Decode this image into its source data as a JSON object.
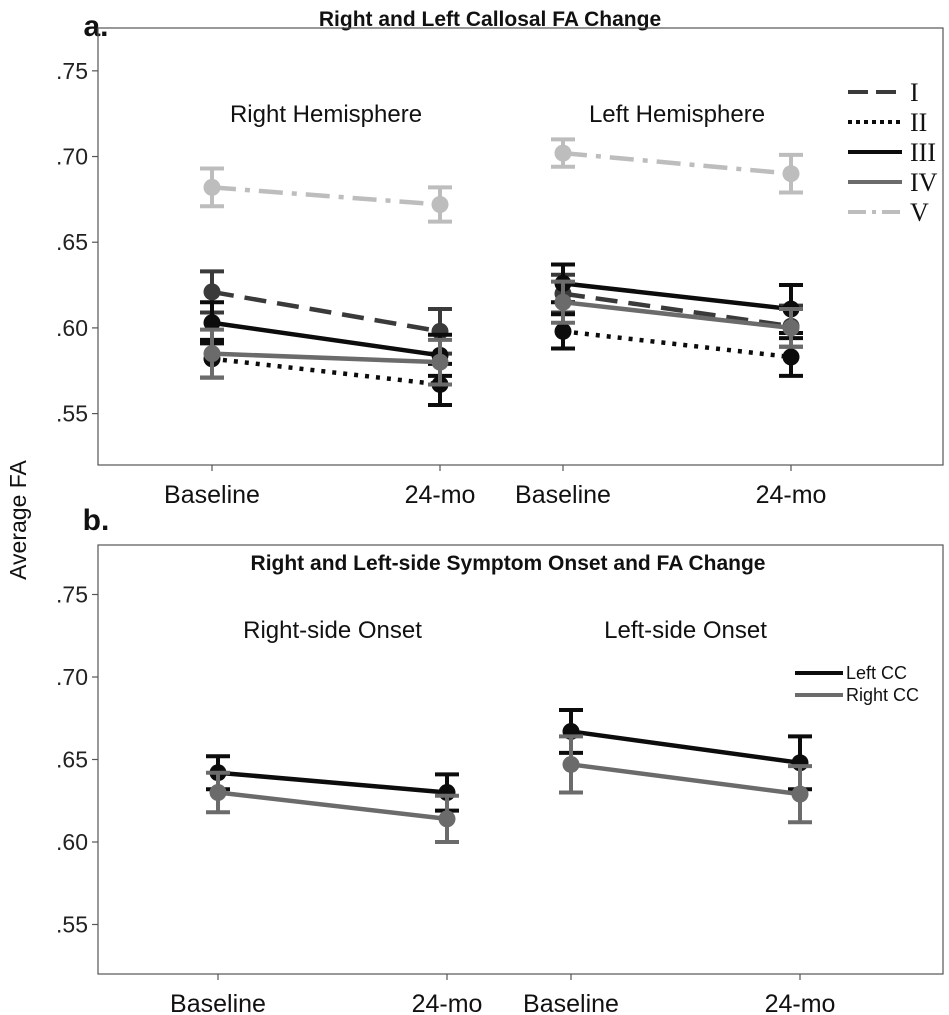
{
  "ylabel": "Average FA",
  "chart_data": [
    {
      "type": "line",
      "panel_label": "a.",
      "title": "Right and Left Callosal FA Change",
      "ylim": [
        0.52,
        0.775
      ],
      "yticks": [
        ".55",
        ".60",
        ".65",
        ".70",
        ".75"
      ],
      "ytick_values": [
        0.55,
        0.6,
        0.65,
        0.7,
        0.75
      ],
      "groups": [
        {
          "label": "Right Hemisphere",
          "categories": [
            "Baseline",
            "24-mo"
          ]
        },
        {
          "label": "Left Hemisphere",
          "categories": [
            "Baseline",
            "24-mo"
          ]
        }
      ],
      "legend": {
        "position": "top-right"
      },
      "series": [
        {
          "name": "I",
          "dash": "dashed",
          "color": "#3a3a3a",
          "values": [
            [
              0.621,
              0.598
            ],
            [
              0.62,
              0.601
            ]
          ],
          "err": [
            [
              0.012,
              0.013
            ],
            [
              0.011,
              0.012
            ]
          ]
        },
        {
          "name": "II",
          "dash": "dotted",
          "color": "#0c0c0c",
          "values": [
            [
              0.582,
              0.567
            ],
            [
              0.598,
              0.583
            ]
          ],
          "err": [
            [
              0.011,
              0.012
            ],
            [
              0.01,
              0.011
            ]
          ]
        },
        {
          "name": "III",
          "dash": "solid",
          "color": "#0c0c0c",
          "values": [
            [
              0.603,
              0.584
            ],
            [
              0.626,
              0.611
            ]
          ],
          "err": [
            [
              0.012,
              0.012
            ],
            [
              0.011,
              0.014
            ]
          ]
        },
        {
          "name": "IV",
          "dash": "solid",
          "color": "#6b6b6b",
          "values": [
            [
              0.585,
              0.58
            ],
            [
              0.615,
              0.6
            ]
          ],
          "err": [
            [
              0.014,
              0.013
            ],
            [
              0.012,
              0.011
            ]
          ]
        },
        {
          "name": "V",
          "dash": "dashdot",
          "color": "#bdbdbd",
          "values": [
            [
              0.682,
              0.672
            ],
            [
              0.702,
              0.69
            ]
          ],
          "err": [
            [
              0.011,
              0.01
            ],
            [
              0.008,
              0.011
            ]
          ]
        }
      ]
    },
    {
      "type": "line",
      "panel_label": "b.",
      "title": "Right and Left-side Symptom Onset and FA Change",
      "ylim": [
        0.52,
        0.78
      ],
      "yticks": [
        ".55",
        ".60",
        ".65",
        ".70",
        ".75"
      ],
      "ytick_values": [
        0.55,
        0.6,
        0.65,
        0.7,
        0.75
      ],
      "groups": [
        {
          "label": "Right-side Onset",
          "categories": [
            "Baseline",
            "24-mo"
          ]
        },
        {
          "label": "Left-side Onset",
          "categories": [
            "Baseline",
            "24-mo"
          ]
        }
      ],
      "legend": {
        "position": "right"
      },
      "series": [
        {
          "name": "Left CC",
          "dash": "solid",
          "color": "#0c0c0c",
          "values": [
            [
              0.642,
              0.63
            ],
            [
              0.667,
              0.648
            ]
          ],
          "err": [
            [
              0.01,
              0.011
            ],
            [
              0.013,
              0.016
            ]
          ]
        },
        {
          "name": "Right CC",
          "dash": "solid",
          "color": "#6b6b6b",
          "values": [
            [
              0.63,
              0.614
            ],
            [
              0.647,
              0.629
            ]
          ],
          "err": [
            [
              0.012,
              0.014
            ],
            [
              0.017,
              0.017
            ]
          ]
        }
      ]
    }
  ]
}
